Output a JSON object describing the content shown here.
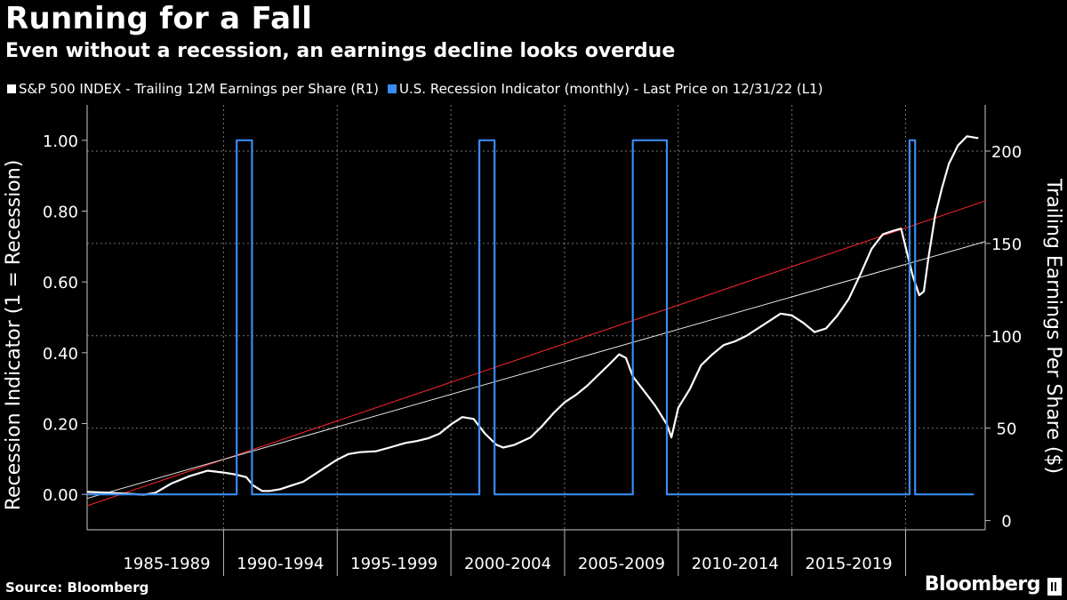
{
  "chart_data": {
    "type": "line",
    "title": "Running for a Fall",
    "subtitle": "Even without a recession, an earnings decline looks overdue",
    "source": "Source: Bloomberg",
    "brand": "Bloomberg",
    "x_range": [
      1984.0,
      2023.5
    ],
    "x_categories": [
      "1985-1989",
      "1990-1994",
      "1995-1999",
      "2000-2004",
      "2005-2009",
      "2010-2014",
      "2015-2019"
    ],
    "left_axis": {
      "label": "Recession Indicator (1 = Recession)",
      "range": [
        -0.1,
        1.1
      ],
      "ticks": [
        0.0,
        0.2,
        0.4,
        0.6,
        0.8,
        1.0
      ],
      "tick_labels": [
        "0.00",
        "0.20",
        "0.40",
        "0.60",
        "0.80",
        "1.00"
      ]
    },
    "right_axis": {
      "label": "Trailing Earnings Per Share ($)",
      "range": [
        -5,
        225
      ],
      "ticks": [
        0,
        50,
        100,
        150,
        200
      ],
      "tick_labels": [
        "0",
        "50",
        "100",
        "150",
        "200"
      ]
    },
    "grid": true,
    "legend_position": "top-left",
    "series": [
      {
        "name": "S&P 500 INDEX - Trailing 12M Earnings per Share (R1)",
        "axis": "right",
        "color": "#ffffff",
        "points": [
          [
            1984.0,
            15.5
          ],
          [
            1985.0,
            15
          ],
          [
            1985.8,
            14.5
          ],
          [
            1986.5,
            14
          ],
          [
            1987.0,
            15
          ],
          [
            1987.7,
            20
          ],
          [
            1988.5,
            24
          ],
          [
            1989.3,
            27
          ],
          [
            1990.0,
            26
          ],
          [
            1990.5,
            25
          ],
          [
            1991.0,
            23.5
          ],
          [
            1991.3,
            19
          ],
          [
            1991.7,
            16
          ],
          [
            1992.0,
            16
          ],
          [
            1992.5,
            17
          ],
          [
            1993.0,
            19
          ],
          [
            1993.5,
            21
          ],
          [
            1994.0,
            25
          ],
          [
            1994.5,
            29
          ],
          [
            1995.0,
            33
          ],
          [
            1995.5,
            36
          ],
          [
            1996.0,
            37
          ],
          [
            1996.7,
            37.5
          ],
          [
            1997.3,
            39.5
          ],
          [
            1998.0,
            42
          ],
          [
            1998.5,
            43
          ],
          [
            1999.0,
            44.5
          ],
          [
            1999.5,
            47
          ],
          [
            2000.0,
            52
          ],
          [
            2000.5,
            56
          ],
          [
            2001.0,
            55
          ],
          [
            2001.5,
            47
          ],
          [
            2002.0,
            41
          ],
          [
            2002.3,
            39.5
          ],
          [
            2002.8,
            41
          ],
          [
            2003.5,
            45
          ],
          [
            2004.0,
            51
          ],
          [
            2004.5,
            58
          ],
          [
            2005.0,
            64
          ],
          [
            2005.5,
            68
          ],
          [
            2006.0,
            73
          ],
          [
            2006.5,
            79
          ],
          [
            2007.0,
            85
          ],
          [
            2007.4,
            90
          ],
          [
            2007.7,
            88
          ],
          [
            2008.0,
            78
          ],
          [
            2008.5,
            70
          ],
          [
            2009.0,
            62
          ],
          [
            2009.5,
            52
          ],
          [
            2009.7,
            45
          ],
          [
            2010.0,
            61
          ],
          [
            2010.5,
            71
          ],
          [
            2011.0,
            84
          ],
          [
            2011.5,
            90
          ],
          [
            2012.0,
            95
          ],
          [
            2012.5,
            97
          ],
          [
            2013.0,
            100
          ],
          [
            2013.5,
            104
          ],
          [
            2014.0,
            108
          ],
          [
            2014.5,
            112
          ],
          [
            2015.0,
            111
          ],
          [
            2015.5,
            107
          ],
          [
            2016.0,
            102
          ],
          [
            2016.5,
            104
          ],
          [
            2017.0,
            111
          ],
          [
            2017.5,
            120
          ],
          [
            2018.0,
            133
          ],
          [
            2018.5,
            147
          ],
          [
            2019.0,
            155
          ],
          [
            2019.5,
            157
          ],
          [
            2019.8,
            158
          ],
          [
            2020.0,
            148
          ],
          [
            2020.3,
            133
          ],
          [
            2020.6,
            122
          ],
          [
            2020.8,
            124
          ],
          [
            2021.0,
            142
          ],
          [
            2021.3,
            165
          ],
          [
            2021.6,
            180
          ],
          [
            2021.9,
            193
          ],
          [
            2022.3,
            203
          ],
          [
            2022.7,
            208
          ],
          [
            2023.2,
            207
          ]
        ]
      },
      {
        "name": "U.S. Recession Indicator (monthly) - Last Price on 12/31/22 (L1)",
        "axis": "left",
        "color": "#3a8cf0",
        "points": [
          [
            1984.0,
            0
          ],
          [
            1990.58,
            0
          ],
          [
            1990.58,
            1
          ],
          [
            1991.25,
            1
          ],
          [
            1991.25,
            0
          ],
          [
            2001.25,
            0
          ],
          [
            2001.25,
            1
          ],
          [
            2001.92,
            1
          ],
          [
            2001.92,
            0
          ],
          [
            2008.0,
            0
          ],
          [
            2008.0,
            1
          ],
          [
            2009.5,
            1
          ],
          [
            2009.5,
            0
          ],
          [
            2020.17,
            0
          ],
          [
            2020.17,
            1
          ],
          [
            2020.42,
            1
          ],
          [
            2020.42,
            0
          ],
          [
            2023.0,
            0
          ]
        ]
      }
    ],
    "trendlines": [
      {
        "axis": "right",
        "color": "#ff2626",
        "from": [
          1984.0,
          8
        ],
        "to": [
          2023.5,
          173
        ]
      },
      {
        "axis": "right",
        "color": "#e6e6e6",
        "from": [
          1984.0,
          12
        ],
        "to": [
          2023.5,
          151
        ]
      }
    ]
  },
  "legend": {
    "earnings_label": "S&P 500 INDEX - Trailing 12M Earnings per Share (R1)",
    "recession_label": "U.S. Recession Indicator (monthly) - Last Price on 12/31/22 (L1)",
    "earnings_color": "#ffffff",
    "recession_color": "#3a8cf0"
  }
}
